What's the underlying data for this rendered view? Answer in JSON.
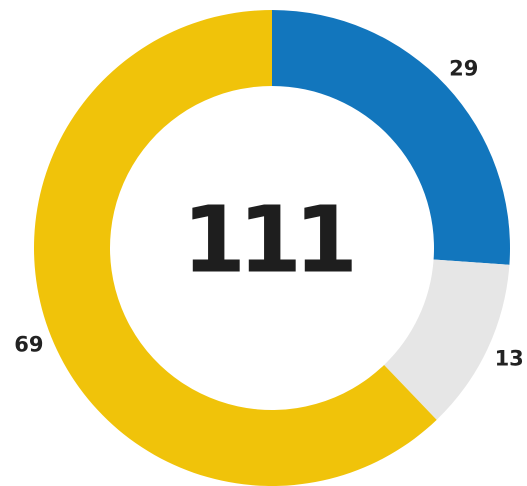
{
  "chart_data": {
    "type": "donut",
    "values": [
      29,
      13,
      69
    ],
    "colors": [
      "#1276bd",
      "#e6e6e6",
      "#f0c30a"
    ],
    "center_label": 111
  }
}
